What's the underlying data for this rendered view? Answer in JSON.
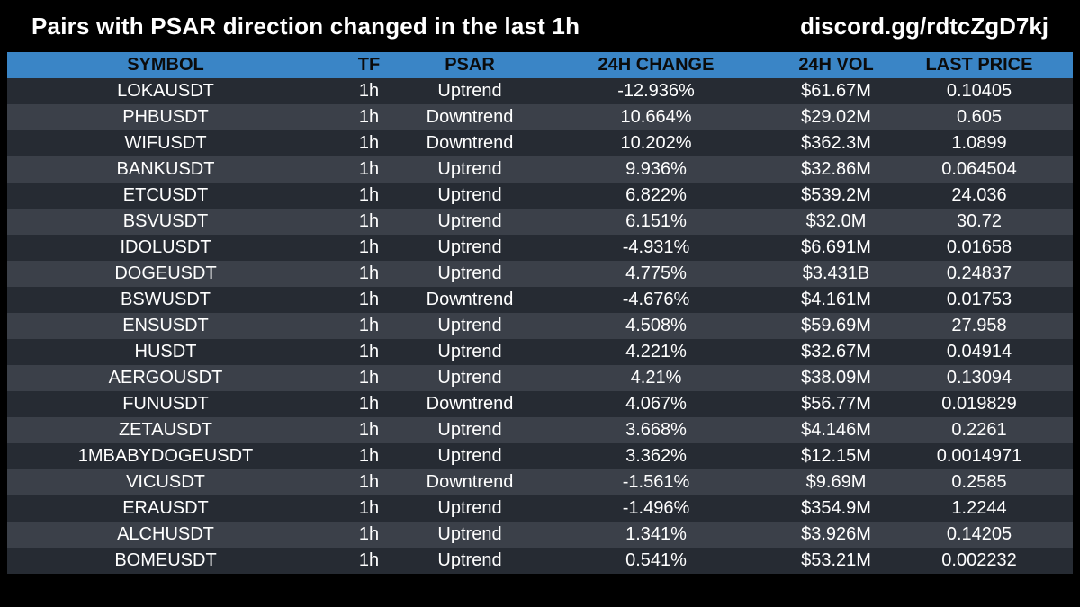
{
  "header": {
    "title": "Pairs with PSAR direction changed in the last 1h",
    "link": "discord.gg/rdtcZgD7kj"
  },
  "colors": {
    "background": "#000000",
    "header_row": "#3a85c6",
    "row_dark": "#262b33",
    "row_light": "#3b4049"
  },
  "table": {
    "columns": [
      "SYMBOL",
      "TF",
      "PSAR",
      "24H CHANGE",
      "24H VOL",
      "LAST PRICE"
    ],
    "rows": [
      [
        "LOKAUSDT",
        "1h",
        "Uptrend",
        "-12.936%",
        "$61.67M",
        "0.10405"
      ],
      [
        "PHBUSDT",
        "1h",
        "Downtrend",
        "10.664%",
        "$29.02M",
        "0.605"
      ],
      [
        "WIFUSDT",
        "1h",
        "Downtrend",
        "10.202%",
        "$362.3M",
        "1.0899"
      ],
      [
        "BANKUSDT",
        "1h",
        "Uptrend",
        "9.936%",
        "$32.86M",
        "0.064504"
      ],
      [
        "ETCUSDT",
        "1h",
        "Uptrend",
        "6.822%",
        "$539.2M",
        "24.036"
      ],
      [
        "BSVUSDT",
        "1h",
        "Uptrend",
        "6.151%",
        "$32.0M",
        "30.72"
      ],
      [
        "IDOLUSDT",
        "1h",
        "Uptrend",
        "-4.931%",
        "$6.691M",
        "0.01658"
      ],
      [
        "DOGEUSDT",
        "1h",
        "Uptrend",
        "4.775%",
        "$3.431B",
        "0.24837"
      ],
      [
        "BSWUSDT",
        "1h",
        "Downtrend",
        "-4.676%",
        "$4.161M",
        "0.01753"
      ],
      [
        "ENSUSDT",
        "1h",
        "Uptrend",
        "4.508%",
        "$59.69M",
        "27.958"
      ],
      [
        "HUSDT",
        "1h",
        "Uptrend",
        "4.221%",
        "$32.67M",
        "0.04914"
      ],
      [
        "AERGOUSDT",
        "1h",
        "Uptrend",
        "4.21%",
        "$38.09M",
        "0.13094"
      ],
      [
        "FUNUSDT",
        "1h",
        "Downtrend",
        "4.067%",
        "$56.77M",
        "0.019829"
      ],
      [
        "ZETAUSDT",
        "1h",
        "Uptrend",
        "3.668%",
        "$4.146M",
        "0.2261"
      ],
      [
        "1MBABYDOGEUSDT",
        "1h",
        "Uptrend",
        "3.362%",
        "$12.15M",
        "0.0014971"
      ],
      [
        "VICUSDT",
        "1h",
        "Downtrend",
        "-1.561%",
        "$9.69M",
        "0.2585"
      ],
      [
        "ERAUSDT",
        "1h",
        "Uptrend",
        "-1.496%",
        "$354.9M",
        "1.2244"
      ],
      [
        "ALCHUSDT",
        "1h",
        "Uptrend",
        "1.341%",
        "$3.926M",
        "0.14205"
      ],
      [
        "BOMEUSDT",
        "1h",
        "Uptrend",
        "0.541%",
        "$53.21M",
        "0.002232"
      ]
    ]
  }
}
